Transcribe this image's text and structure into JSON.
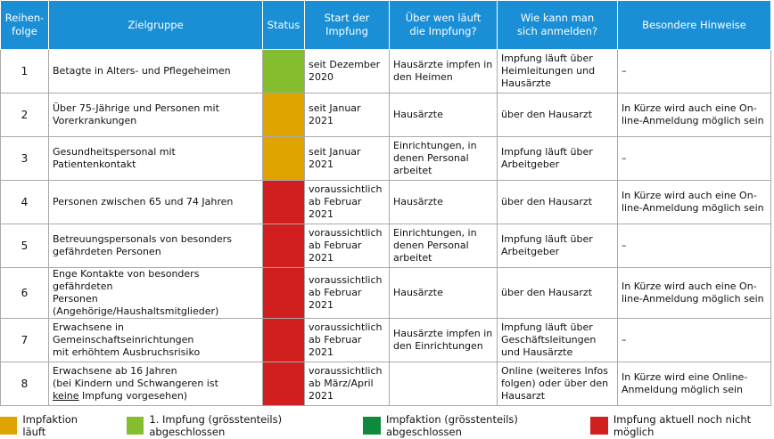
{
  "headers": [
    "Reihen-\nfolge",
    "Zielgruppe",
    "Status",
    "Start der\nImpfung",
    "Über wen läuft\ndie Impfung?",
    "Wie kann man\nsich anmelden?",
    "Besondere Hinweise"
  ],
  "colors": {
    "header": "#1a8fd6",
    "in_progress": "#e0a400",
    "done_first": "#84bd2e",
    "done": "#0f8a3c",
    "not_yet": "#d11f1f"
  },
  "rows": [
    {
      "nr": "1",
      "group": "Betagte in Alters- und Pflegeheimen",
      "status": "done_first",
      "start": "seit Dezember\n2020",
      "via": "Hausärzte impfen in\nden Heimen",
      "signup": "Impfung läuft über\nHeimleitungen und\nHausärzte",
      "notes": "–"
    },
    {
      "nr": "2",
      "group": "Über 75-Jährige und Personen mit\nVorerkrankungen",
      "status": "in_progress",
      "start": "seit Januar 2021",
      "via": "Hausärzte",
      "signup": "über den Hausarzt",
      "notes": "In Kürze wird auch eine On-\nline-Anmeldung möglich sein"
    },
    {
      "nr": "3",
      "group": "Gesundheitspersonal mit Patientenkontakt",
      "status": "in_progress",
      "start": "seit Januar 2021",
      "via": "Einrichtungen, in\ndenen Personal\narbeitet",
      "signup": "Impfung läuft über\nArbeitgeber",
      "notes": "–"
    },
    {
      "nr": "4",
      "group": "Personen zwischen 65 und 74 Jahren",
      "status": "not_yet",
      "start": "voraussichtlich\nab Februar 2021",
      "via": "Hausärzte",
      "signup": "über den Hausarzt",
      "notes": "In Kürze wird auch eine On-\nline-Anmeldung möglich sein"
    },
    {
      "nr": "5",
      "group": "Betreuungspersonals von besonders\ngefährdeten Personen",
      "status": "not_yet",
      "start": "voraussichtlich\nab Februar 2021",
      "via": "Einrichtungen, in\ndenen Personal\narbeitet",
      "signup": "Impfung läuft über\nArbeitgeber",
      "notes": "–"
    },
    {
      "nr": "6",
      "group": "Enge Kontakte von besonders gefährdeten\nPersonen (Angehörige/Haushaltsmitglieder)",
      "status": "not_yet",
      "start": "voraussichtlich\nab Februar 2021",
      "via": "Hausärzte",
      "signup": "über den Hausarzt",
      "notes": "In Kürze wird auch eine On-\nline-Anmeldung möglich sein"
    },
    {
      "nr": "7",
      "group": "Erwachsene in Gemeinschaftseinrichtungen\nmit erhöhtem Ausbruchsrisiko",
      "status": "not_yet",
      "start": "voraussichtlich\nab Februar 2021",
      "via": "Hausärzte impfen in\nden Einrichtungen",
      "signup": "Impfung läuft über\nGeschäftsleitungen\nund Hausärzte",
      "notes": "–"
    },
    {
      "nr": "8",
      "group_pre": "Erwachsene ab 16 Jahren\n(bei Kindern und Schwangeren ist\n",
      "group_underlined": "keine",
      "group_post": " Impfung vorgesehen)",
      "status": "not_yet",
      "start": "voraussichtlich\nab März/April\n2021",
      "via": "",
      "signup": "Online (weiteres Infos\nfolgen) oder über den\nHausarzt",
      "notes": "In Kürze wird eine Online-\nAnmeldung möglich sein"
    }
  ],
  "legend": [
    {
      "status": "in_progress",
      "label": "Impfaktion läuft"
    },
    {
      "status": "done_first",
      "label": "1. Impfung (grösstenteils) abgeschlossen"
    },
    {
      "status": "done",
      "label": "Impfaktion (grösstenteils) abgeschlossen"
    },
    {
      "status": "not_yet",
      "label": "Impfung aktuell noch nicht möglich"
    }
  ]
}
